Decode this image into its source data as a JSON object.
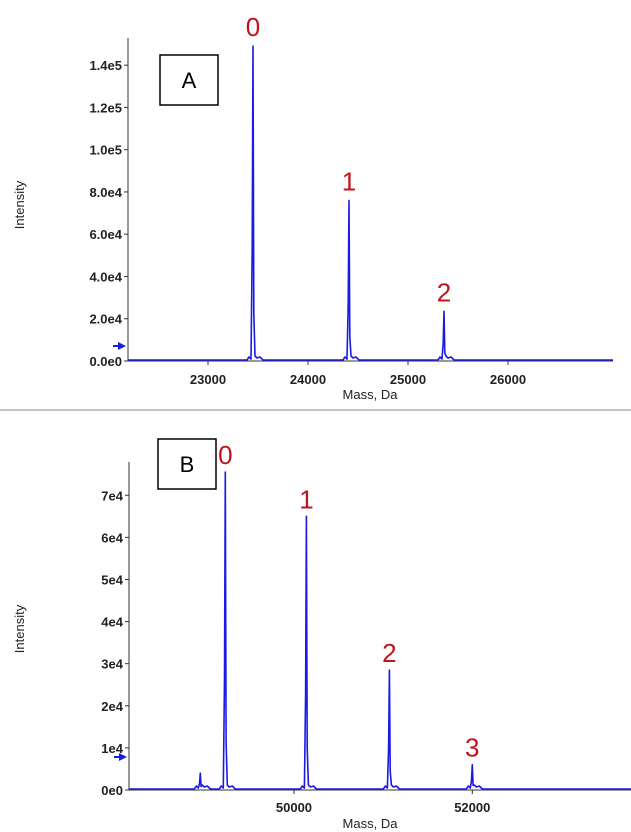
{
  "chart_data": [
    {
      "type": "line",
      "panel_label": "A",
      "xlabel": "Mass, Da",
      "ylabel": "Intensity",
      "x_ticks": [
        "23000",
        "24000",
        "25000",
        "26000"
      ],
      "y_ticks": [
        "0.0e0",
        "2.0e4",
        "4.0e4",
        "6.0e4",
        "8.0e4",
        "1.0e5",
        "1.2e5",
        "1.4e5"
      ],
      "xlim": [
        22200,
        27050
      ],
      "ylim": [
        0,
        150000
      ],
      "peaks": [
        {
          "label": "0",
          "x": 23450,
          "y": 149000
        },
        {
          "label": "1",
          "x": 24410,
          "y": 76000
        },
        {
          "label": "2",
          "x": 25360,
          "y": 23500
        }
      ],
      "colors": {
        "trace": "#1a1ae6",
        "peak_label": "#c0141c"
      }
    },
    {
      "type": "line",
      "panel_label": "B",
      "xlabel": "Mass, Da",
      "ylabel": "Intensity",
      "x_ticks": [
        "50000",
        "52000"
      ],
      "y_ticks": [
        "0e0",
        "1e4",
        "2e4",
        "3e4",
        "4e4",
        "5e4",
        "6e4",
        "7e4"
      ],
      "xlim": [
        48150,
        53780
      ],
      "ylim": [
        0,
        76000
      ],
      "peaks": [
        {
          "label": "0",
          "x": 49230,
          "y": 75500
        },
        {
          "label": "1",
          "x": 50140,
          "y": 65000
        },
        {
          "label": "2",
          "x": 51070,
          "y": 28500
        },
        {
          "label": "3",
          "x": 52000,
          "y": 6000
        }
      ],
      "minor_peaks": [
        {
          "x": 48950,
          "y": 4000
        }
      ],
      "colors": {
        "trace": "#1a1ae6",
        "peak_label": "#c0141c"
      }
    }
  ]
}
